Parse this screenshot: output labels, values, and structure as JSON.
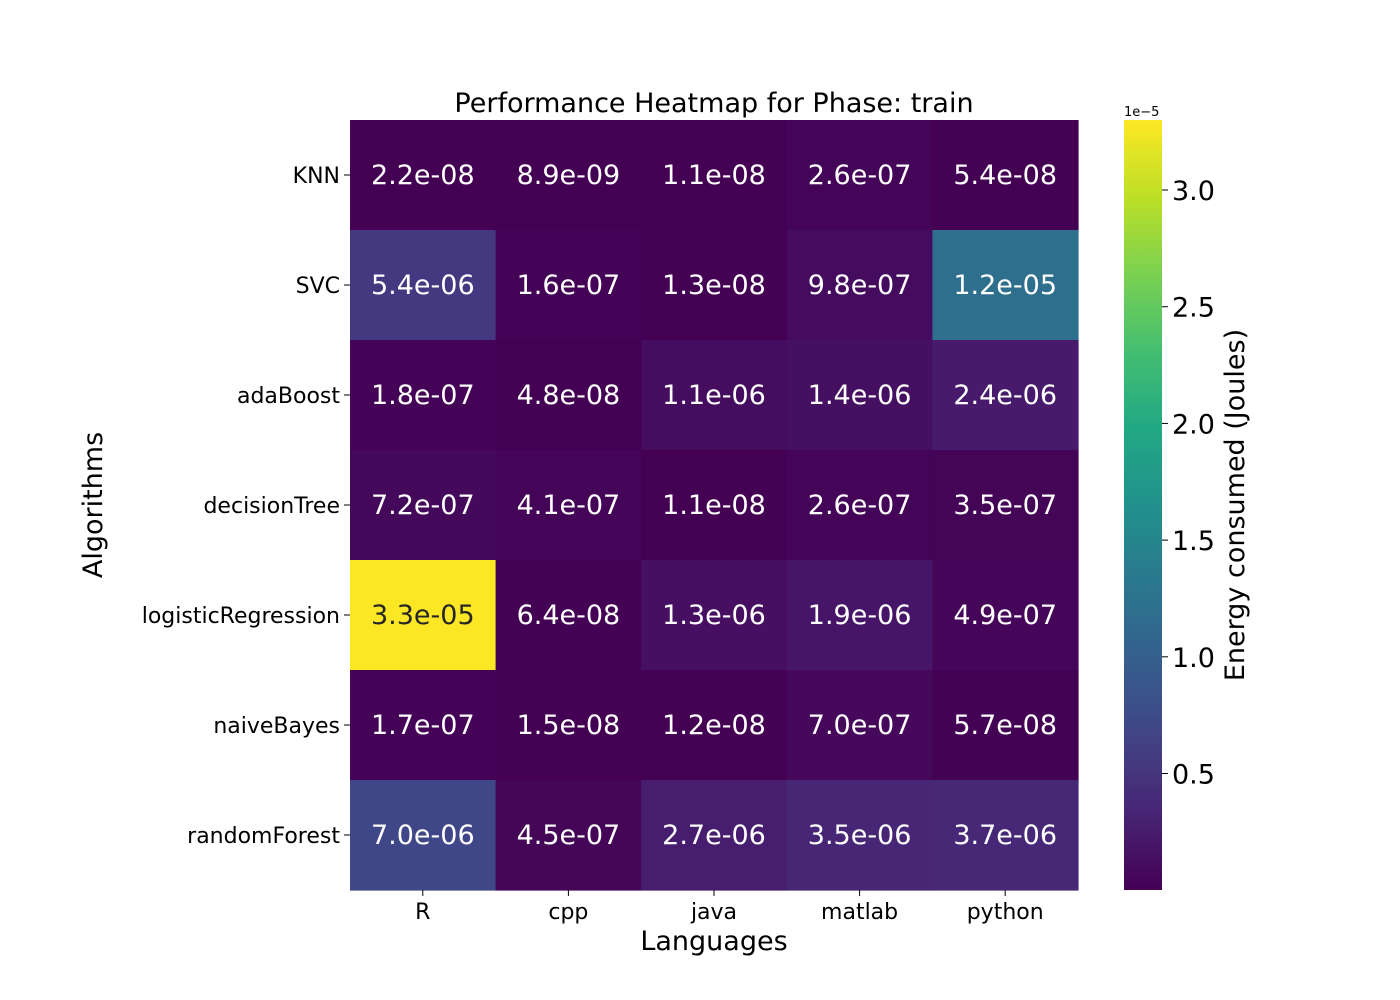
{
  "chart_data": {
    "type": "heatmap",
    "title": "Performance Heatmap for Phase: train",
    "xlabel": "Languages",
    "ylabel": "Algorithms",
    "x_categories": [
      "R",
      "cpp",
      "java",
      "matlab",
      "python"
    ],
    "y_categories": [
      "KNN",
      "SVC",
      "adaBoost",
      "decisionTree",
      "logisticRegression",
      "naiveBayes",
      "randomForest"
    ],
    "values": [
      [
        2.2e-08,
        8.9e-09,
        1.1e-08,
        2.6e-07,
        5.4e-08
      ],
      [
        5.4e-06,
        1.6e-07,
        1.3e-08,
        9.8e-07,
        1.2e-05
      ],
      [
        1.8e-07,
        4.8e-08,
        1.1e-06,
        1.4e-06,
        2.4e-06
      ],
      [
        7.2e-07,
        4.1e-07,
        1.1e-08,
        2.6e-07,
        3.5e-07
      ],
      [
        3.3e-05,
        6.4e-08,
        1.3e-06,
        1.9e-06,
        4.9e-07
      ],
      [
        1.7e-07,
        1.5e-08,
        1.2e-08,
        7e-07,
        5.7e-08
      ],
      [
        7e-06,
        4.5e-07,
        2.7e-06,
        3.5e-06,
        3.7e-06
      ]
    ],
    "cell_labels": [
      [
        "2.2e-08",
        "8.9e-09",
        "1.1e-08",
        "2.6e-07",
        "5.4e-08"
      ],
      [
        "5.4e-06",
        "1.6e-07",
        "1.3e-08",
        "9.8e-07",
        "1.2e-05"
      ],
      [
        "1.8e-07",
        "4.8e-08",
        "1.1e-06",
        "1.4e-06",
        "2.4e-06"
      ],
      [
        "7.2e-07",
        "4.1e-07",
        "1.1e-08",
        "2.6e-07",
        "3.5e-07"
      ],
      [
        "3.3e-05",
        "6.4e-08",
        "1.3e-06",
        "1.9e-06",
        "4.9e-07"
      ],
      [
        "1.7e-07",
        "1.5e-08",
        "1.2e-08",
        "7.0e-07",
        "5.7e-08"
      ],
      [
        "7.0e-06",
        "4.5e-07",
        "2.7e-06",
        "3.5e-06",
        "3.7e-06"
      ]
    ],
    "colorbar": {
      "label": "Energy consumed (Joules)",
      "colormap": "viridis",
      "range": [
        8.9e-09,
        3.3e-05
      ],
      "offset_text": "1e−5",
      "ticks": [
        0.5,
        1.0,
        1.5,
        2.0,
        2.5,
        3.0
      ],
      "tick_labels": [
        "0.5",
        "1.0",
        "1.5",
        "2.0",
        "2.5",
        "3.0"
      ],
      "tick_scale": 1e-05
    },
    "colors": {
      "light_text": "#ffffff",
      "dark_text": "#262626"
    }
  }
}
